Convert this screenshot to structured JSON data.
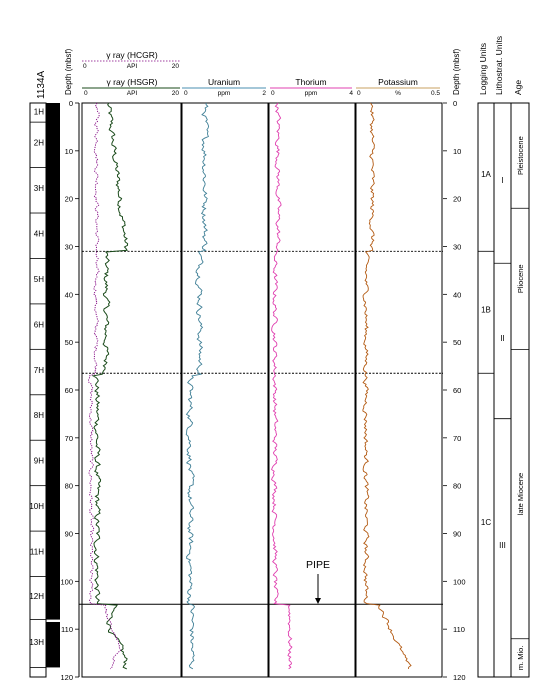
{
  "site": "1134A",
  "depth_axis": {
    "label": "Depth (mbsf)",
    "range": [
      0,
      120
    ],
    "ticks": [
      0,
      10,
      20,
      30,
      40,
      50,
      60,
      70,
      80,
      90,
      100,
      110,
      120
    ]
  },
  "cores": [
    {
      "label": "1H",
      "top": 0.0,
      "bottom": 4.0
    },
    {
      "label": "2H",
      "top": 4.0,
      "bottom": 13.5
    },
    {
      "label": "3H",
      "top": 13.5,
      "bottom": 23.0
    },
    {
      "label": "4H",
      "top": 23.0,
      "bottom": 32.5
    },
    {
      "label": "5H",
      "top": 32.5,
      "bottom": 42.0
    },
    {
      "label": "6H",
      "top": 42.0,
      "bottom": 51.5
    },
    {
      "label": "7H",
      "top": 51.5,
      "bottom": 61.0
    },
    {
      "label": "8H",
      "top": 61.0,
      "bottom": 70.5
    },
    {
      "label": "9H",
      "top": 70.5,
      "bottom": 80.0
    },
    {
      "label": "10H",
      "top": 80.0,
      "bottom": 89.5
    },
    {
      "label": "11H",
      "top": 89.5,
      "bottom": 99.0
    },
    {
      "label": "12H",
      "top": 99.0,
      "bottom": 108.0
    },
    {
      "label": "13H",
      "top": 108.3,
      "bottom": 118.0
    }
  ],
  "tracks": {
    "gamma": {
      "hcgr_title": "γ ray (HCGR)",
      "hsgr_title": "γ ray (HSGR)",
      "unit": "API",
      "hcgr_scale": [
        "0",
        "20"
      ],
      "hsgr_scale": [
        "0",
        "20"
      ],
      "hcgr_color": "#800080",
      "hsgr_color": "#1a4a1a"
    },
    "uranium": {
      "title": "Uranium",
      "unit": "ppm",
      "scale": [
        "0",
        "2"
      ],
      "color": "#3f7f96",
      "header_color": "#4a8fb0"
    },
    "thorium": {
      "title": "Thorium",
      "unit": "ppm",
      "scale": [
        "0",
        "4"
      ],
      "color": "#e040b0",
      "header_color": "#e040b0"
    },
    "potassium": {
      "title": "Potassium",
      "unit": "%",
      "scale": [
        "0",
        "0.5"
      ],
      "color": "#b35a12",
      "header_color": "#c8a060"
    }
  },
  "pipe_label": "PIPE",
  "pipe_depth": 104.8,
  "unit_boundaries": [
    31,
    56.5
  ],
  "logging_units": {
    "title": "Logging Units",
    "units": [
      {
        "label": "1A",
        "top": 0,
        "bottom": 31
      },
      {
        "label": "1B",
        "top": 31,
        "bottom": 56.5
      },
      {
        "label": "1C",
        "top": 56.5,
        "bottom": 120
      }
    ]
  },
  "litho_units": {
    "title": "Lithostrat. Units",
    "units": [
      {
        "label": "I",
        "top": 0,
        "bottom": 33.5
      },
      {
        "label": "II",
        "top": 33.5,
        "bottom": 66
      },
      {
        "label": "III",
        "top": 66,
        "bottom": 120
      }
    ]
  },
  "ages": {
    "title": "Age",
    "units": [
      {
        "label": "Pleistocene",
        "top": 0,
        "bottom": 22
      },
      {
        "label": "Pliocene",
        "top": 22,
        "bottom": 51.5
      },
      {
        "label": "late Miocene",
        "top": 51.5,
        "bottom": 112
      },
      {
        "label": "m. Mio.",
        "top": 112,
        "bottom": 120
      }
    ]
  }
}
